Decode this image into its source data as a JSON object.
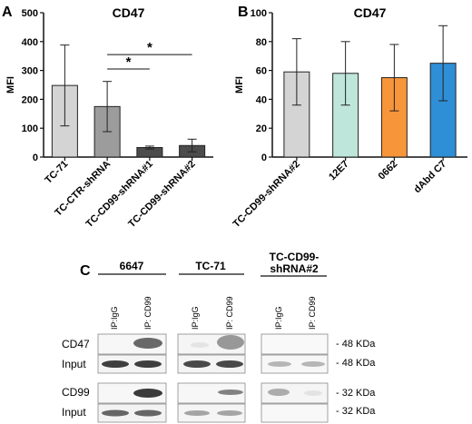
{
  "panels": {
    "a": "A",
    "b": "B",
    "c": "C"
  },
  "chart_data": [
    {
      "type": "bar",
      "panel": "A",
      "title": "CD47",
      "ylabel": "MFI",
      "ylim": [
        0,
        500
      ],
      "yticks": [
        0,
        100,
        200,
        300,
        400,
        500
      ],
      "categories": [
        "TC-71",
        "TC-CTR-shRNA",
        "TC-CD99-shRNA#1",
        "TC-CD99-shRNA#2"
      ],
      "values": [
        248,
        175,
        33,
        40
      ],
      "errors": [
        140,
        87,
        5,
        22
      ],
      "colors": [
        "#d4d4d4",
        "#9c9c9c",
        "#4c4c4c",
        "#4c4c4c"
      ],
      "significance": [
        {
          "from": 1,
          "to": 2,
          "label": "*",
          "y": 305
        },
        {
          "from": 1,
          "to": 3,
          "label": "*",
          "y": 355
        }
      ]
    },
    {
      "type": "bar",
      "panel": "B",
      "title": "CD47",
      "ylabel": "MFI",
      "ylim": [
        0,
        100
      ],
      "yticks": [
        0,
        20,
        40,
        60,
        80,
        100
      ],
      "categories": [
        "TC-CD99-shRNA#2",
        "12E7",
        "0662",
        "dAbd C7"
      ],
      "values": [
        59,
        58,
        55,
        65
      ],
      "errors": [
        23,
        22,
        23,
        26
      ],
      "colors": [
        "#d4d4d4",
        "#bfe6da",
        "#f7953a",
        "#2e8fd6"
      ]
    }
  ],
  "blot": {
    "groups": [
      {
        "name": "6647",
        "lanes": [
          "IP:IgG",
          "IP: CD99"
        ]
      },
      {
        "name": "TC-71",
        "lanes": [
          "IP:IgG",
          "IP: CD99"
        ]
      },
      {
        "name_line1": "TC-CD99-",
        "name_line2": "shRNA#2",
        "lanes": [
          "IP:IgG",
          "IP: CD99"
        ]
      }
    ],
    "rows": [
      {
        "label": "CD47",
        "marker": "- 48 KDa"
      },
      {
        "label": "Input",
        "marker": "- 48 KDa"
      },
      {
        "label": "CD99",
        "marker": "- 32 KDa"
      },
      {
        "label": "Input",
        "marker": "- 32 KDa"
      }
    ]
  }
}
